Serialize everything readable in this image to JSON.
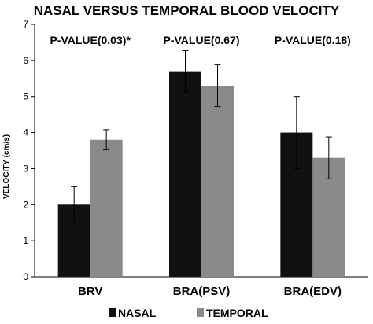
{
  "chart_data": {
    "type": "bar",
    "title": "NASAL VERSUS TEMPORAL BLOOD VELOCITY",
    "ylabel": "VELOCITY (cm/s)",
    "xlabel": "",
    "ylim": [
      0,
      7
    ],
    "yticks": [
      "0",
      "1",
      "2",
      "3",
      "4",
      "5",
      "6",
      "7"
    ],
    "categories": [
      "BRV",
      "BRA(PSV)",
      "BRA(EDV)"
    ],
    "series": [
      {
        "name": "NASAL",
        "color": "#111111",
        "values": [
          2.0,
          5.7,
          4.0
        ],
        "errors": [
          0.5,
          0.57,
          1.0
        ]
      },
      {
        "name": "TEMPORAL",
        "color": "#8a8a8a",
        "values": [
          3.8,
          5.3,
          3.3
        ],
        "errors": [
          0.28,
          0.58,
          0.58
        ]
      }
    ],
    "annotations": [
      "P-VALUE(0.03)*",
      "P-VALUE(0.67)",
      "P-VALUE(0.18)"
    ],
    "grid": false,
    "legend": "bottom"
  }
}
